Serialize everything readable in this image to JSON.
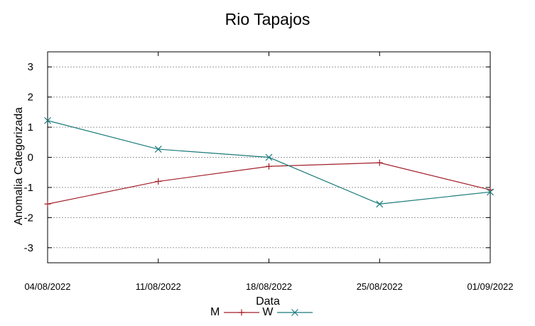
{
  "chart_data": {
    "type": "line",
    "title": "Rio Tapajos",
    "xlabel": "Data",
    "ylabel": "Anomalia Categorizada",
    "categories": [
      "04/08/2022",
      "11/08/2022",
      "18/08/2022",
      "25/08/2022",
      "01/09/2022"
    ],
    "ylim": [
      -3.5,
      3.5
    ],
    "yticks": [
      3,
      2,
      1,
      0,
      -1,
      -2,
      -3
    ],
    "ytick_labels": [
      "3",
      "2",
      "1",
      "0",
      "-1",
      "-2",
      "-3"
    ],
    "grid": true,
    "legend_position": "bottom-center",
    "series": [
      {
        "name": "M",
        "color": "#a31f2a",
        "marker": "plus",
        "values": [
          -1.55,
          -0.8,
          -0.3,
          -0.18,
          -1.08
        ]
      },
      {
        "name": "W",
        "color": "#1a7a7a",
        "marker": "x",
        "values": [
          1.22,
          0.27,
          0.0,
          -1.55,
          -1.15
        ]
      }
    ]
  }
}
